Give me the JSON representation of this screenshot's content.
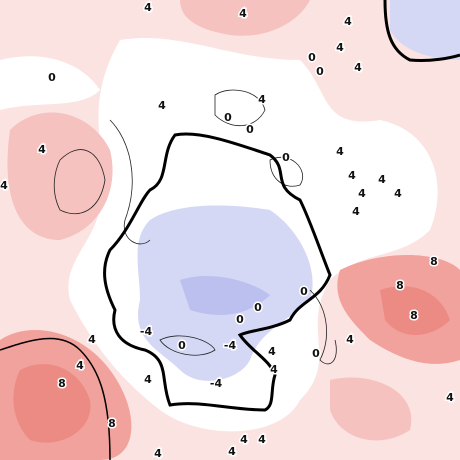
{
  "contour_labels": [
    4,
    4,
    4,
    4,
    0,
    0,
    4,
    0,
    4,
    4,
    0,
    0,
    4,
    0,
    4,
    4,
    4,
    4,
    4,
    4,
    4,
    8,
    8,
    8,
    0,
    0,
    0,
    -4,
    0,
    -4,
    0,
    4,
    4,
    4,
    4,
    -4,
    4,
    8,
    8,
    4,
    4,
    4,
    4,
    4,
    4
  ]
}
